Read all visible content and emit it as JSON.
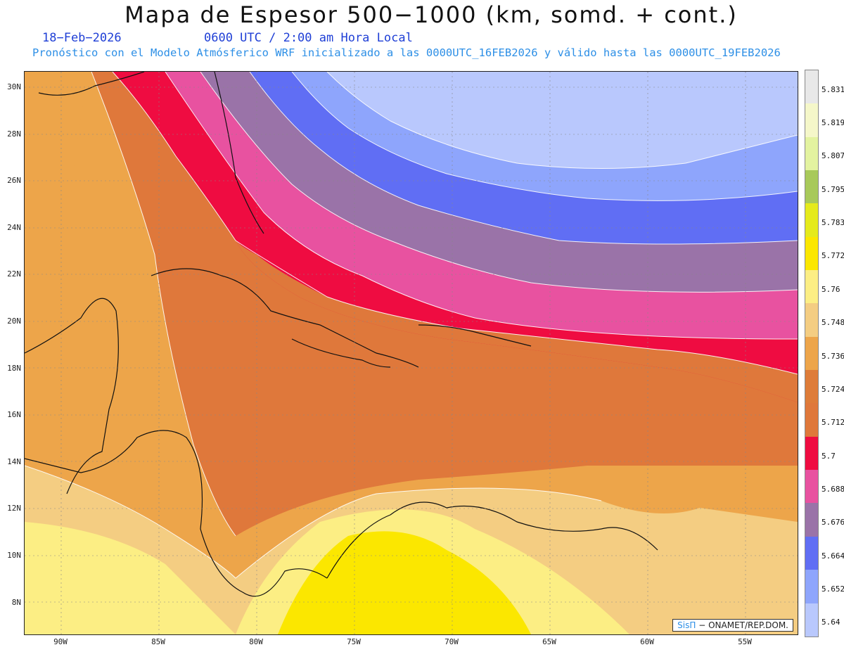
{
  "header": {
    "title": "Mapa de Espesor 500−1000 (km, somd. + cont.)",
    "date": "18−Feb−2026",
    "time": "0600 UTC / 2:00 am Hora Local",
    "subtitle": "Pronóstico con el Modelo Atmósferico WRF inicializado a las 0000UTC_16FEB2026 y válido hasta las  0000UTC_19FEB2026"
  },
  "map": {
    "lat_labels": [
      "30N",
      "28N",
      "26N",
      "24N",
      "22N",
      "20N",
      "18N",
      "16N",
      "14N",
      "12N",
      "10N",
      "8N"
    ],
    "lon_labels": [
      "90W",
      "85W",
      "80W",
      "75W",
      "70W",
      "65W",
      "60W",
      "55W"
    ],
    "credit_logo": "SisΠ",
    "credit_text": "− ONAMET/REP.DOM."
  },
  "colorbar": {
    "labels": [
      "5.831",
      "5.819",
      "5.807",
      "5.795",
      "5.783",
      "5.772",
      "5.76",
      "5.748",
      "5.736",
      "5.724",
      "5.712",
      "5.7",
      "5.688",
      "5.676",
      "5.664",
      "5.652",
      "5.64"
    ],
    "colors": [
      "#e8e8e8",
      "#f5f7c9",
      "#e3f3a0",
      "#a8c95a",
      "#e5ea1c",
      "#fbe700",
      "#fcee84",
      "#f4cd82",
      "#eda54a",
      "#de7c39",
      "#df783b",
      "#ef0c41",
      "#e852a0",
      "#9a73a8",
      "#606ef4",
      "#8ea5fc",
      "#b9c8fd"
    ]
  }
}
